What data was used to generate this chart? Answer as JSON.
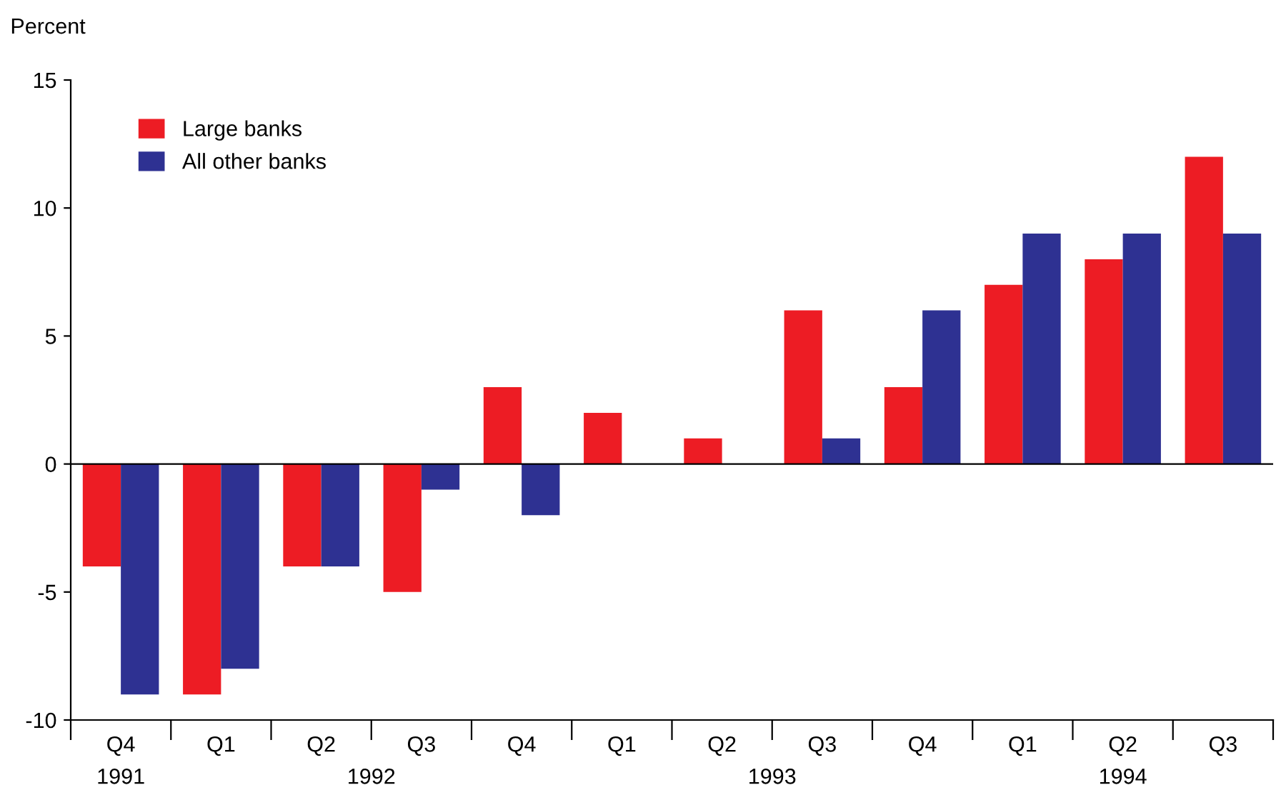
{
  "chart_data": {
    "type": "bar",
    "ylabel": "Percent",
    "categories": [
      "Q4",
      "Q1",
      "Q2",
      "Q3",
      "Q4",
      "Q1",
      "Q2",
      "Q3",
      "Q4",
      "Q1",
      "Q2",
      "Q3"
    ],
    "series": [
      {
        "name": "Large banks",
        "color": "#ed1c24",
        "values": [
          -4,
          -9,
          -4,
          -5,
          3,
          2,
          1,
          6,
          3,
          7,
          8,
          12
        ]
      },
      {
        "name": "All other banks",
        "color": "#2e3192",
        "values": [
          -9,
          -8,
          -4,
          -1,
          -2,
          0,
          0,
          1,
          6,
          9,
          9,
          9
        ]
      }
    ],
    "ylim": [
      -10,
      15
    ],
    "yticks": [
      -10,
      -5,
      0,
      5,
      10,
      15
    ],
    "ref_lines": [
      {
        "axis": "y",
        "value": 0,
        "color": "#000000"
      }
    ],
    "annotations": [
      "1991",
      "1992",
      "1993",
      "1994"
    ],
    "legend": "top left",
    "grid": false
  }
}
